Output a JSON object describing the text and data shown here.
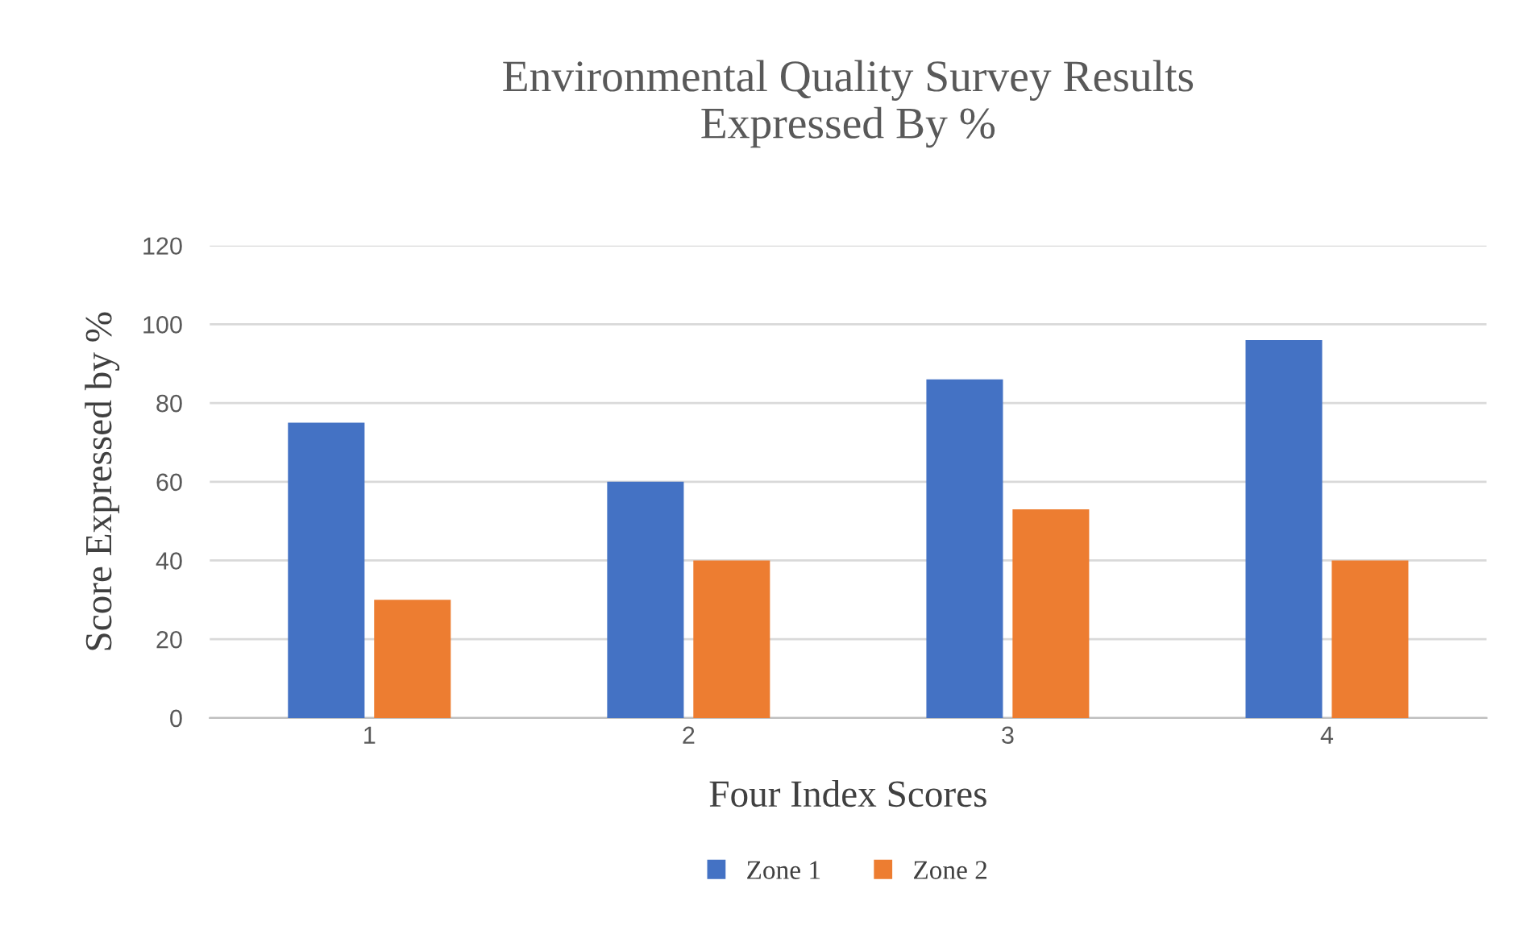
{
  "chart_data": {
    "type": "bar",
    "title": "Environmental Quality Survey Results\nExpressed By %",
    "xlabel": "Four Index Scores",
    "ylabel": "Score Expressed by %",
    "categories": [
      "1",
      "2",
      "3",
      "4"
    ],
    "series": [
      {
        "name": "Zone 1",
        "color": "#4472c4",
        "values": [
          75,
          60,
          86,
          96
        ]
      },
      {
        "name": "Zone 2",
        "color": "#ed7d31",
        "values": [
          30,
          40,
          53,
          40
        ]
      }
    ],
    "ylim": [
      0,
      120
    ],
    "yticks": [
      0,
      20,
      40,
      60,
      80,
      100,
      120
    ],
    "grid": "y",
    "legend": "bottom"
  }
}
